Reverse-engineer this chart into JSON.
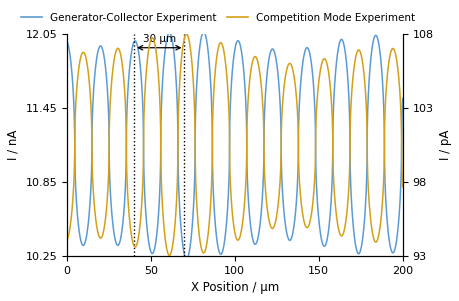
{
  "xlabel": "X Position / μm",
  "ylabel_left": "I / nA",
  "ylabel_right": "I / pA",
  "xlim": [
    0,
    200
  ],
  "ylim_left": [
    10.25,
    12.05
  ],
  "ylim_right": [
    93,
    108
  ],
  "xticks": [
    0,
    50,
    100,
    150,
    200
  ],
  "yticks_left": [
    10.25,
    10.85,
    11.45,
    12.05
  ],
  "yticks_right": [
    93,
    98,
    103,
    108
  ],
  "dashed_x1": 40,
  "dashed_x2": 70,
  "annotation_text": "30 μm",
  "color_blue": "#5B9BD5",
  "color_gold": "#D4A017",
  "legend_blue": "Generator-Collector Experiment",
  "legend_gold": "Competition Mode Experiment",
  "blue_mean": 11.15,
  "blue_amp_start": 0.88,
  "blue_amp_end": 0.82,
  "gold_mean": 100.5,
  "gold_amp_start": 7.2,
  "gold_amp_end": 5.8,
  "period": 20.5,
  "phase_shift_gold": 10.0,
  "peak_sharpness": 2.5
}
